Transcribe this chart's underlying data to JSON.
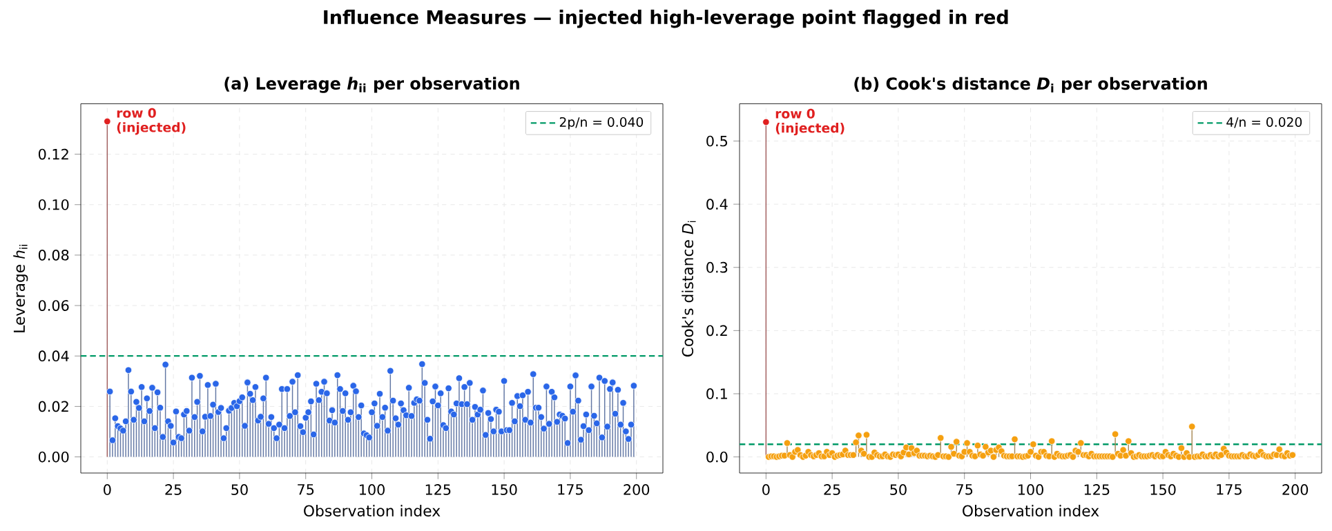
{
  "chart_data": [
    {
      "type": "lollipop",
      "title": "(a) Leverage *h*$_{ii}$ per observation",
      "xlabel": "Observation index",
      "ylabel": "Leverage *h*$_{ii}$",
      "annotations": [
        "Influence Measures — injected high-leverage point flagged in red",
        {
          "text": "row 0 (injected)",
          "x": 0,
          "y": 0.133
        }
      ],
      "xlim": [
        -10,
        210
      ],
      "xticks": [
        0,
        25,
        50,
        75,
        100,
        125,
        150,
        175,
        200
      ],
      "ylim": [
        -0.0064,
        0.14
      ],
      "yticks": [
        {
          "value": 0,
          "label": "0.00"
        },
        {
          "value": 0.02,
          "label": "0.02"
        },
        {
          "value": 0.04,
          "label": "0.04"
        },
        {
          "value": 0.06,
          "label": "0.06"
        },
        {
          "value": 0.08,
          "label": "0.08"
        },
        {
          "value": 0.1,
          "label": "0.10"
        },
        {
          "value": 0.12,
          "label": "0.12"
        }
      ],
      "grid": true,
      "legend": "top right",
      "marker": "circle",
      "ref_lines": [
        {
          "axis": "y",
          "value": 0.04,
          "label": "2p/n = 0.040",
          "color": "#009966",
          "line_style": "dashed"
        }
      ],
      "series": [
        {
          "color": "#2a66e8",
          "x": [
            1,
            2,
            3,
            4,
            5,
            6,
            7,
            8,
            9,
            10,
            11,
            12,
            13,
            14,
            15,
            16,
            17,
            18,
            19,
            20,
            21,
            22,
            23,
            24,
            25,
            26,
            27,
            28,
            29,
            30,
            31,
            32,
            33,
            34,
            35,
            36,
            37,
            38,
            39,
            40,
            41,
            42,
            43,
            44,
            45,
            46,
            47,
            48,
            49,
            50,
            51,
            52,
            53,
            54,
            55,
            56,
            57,
            58,
            59,
            60,
            61,
            62,
            63,
            64,
            65,
            66,
            67,
            68,
            69,
            70,
            71,
            72,
            73,
            74,
            75,
            76,
            77,
            78,
            79,
            80,
            81,
            82,
            83,
            84,
            85,
            86,
            87,
            88,
            89,
            90,
            91,
            92,
            93,
            94,
            95,
            96,
            97,
            98,
            99,
            100,
            101,
            102,
            103,
            104,
            105,
            106,
            107,
            108,
            109,
            110,
            111,
            112,
            113,
            114,
            115,
            116,
            117,
            118,
            119,
            120,
            121,
            122,
            123,
            124,
            125,
            126,
            127,
            128,
            129,
            130,
            131,
            132,
            133,
            134,
            135,
            136,
            137,
            138,
            139,
            140,
            141,
            142,
            143,
            144,
            145,
            146,
            147,
            148,
            149,
            150,
            151,
            152,
            153,
            154,
            155,
            156,
            157,
            158,
            159,
            160,
            161,
            162,
            163,
            164,
            165,
            166,
            167,
            168,
            169,
            170,
            171,
            172,
            173,
            174,
            175,
            176,
            177,
            178,
            179,
            180,
            181,
            182,
            183,
            184,
            185,
            186,
            187,
            188,
            189,
            190,
            191,
            192,
            193,
            194,
            195,
            196,
            197,
            198,
            199
          ],
          "values": [
            0.0259,
            0.0066,
            0.0153,
            0.0122,
            0.0113,
            0.0104,
            0.0141,
            0.0344,
            0.0259,
            0.0147,
            0.0218,
            0.0194,
            0.0277,
            0.0141,
            0.0232,
            0.0182,
            0.0274,
            0.0114,
            0.0256,
            0.0195,
            0.0079,
            0.0366,
            0.0141,
            0.0123,
            0.0057,
            0.018,
            0.0079,
            0.0074,
            0.0168,
            0.0182,
            0.0104,
            0.0314,
            0.0158,
            0.0218,
            0.0321,
            0.0101,
            0.0159,
            0.0285,
            0.0162,
            0.0207,
            0.029,
            0.0178,
            0.0194,
            0.0074,
            0.0114,
            0.0183,
            0.0194,
            0.0214,
            0.0201,
            0.0221,
            0.0236,
            0.0123,
            0.0295,
            0.025,
            0.0225,
            0.0277,
            0.0144,
            0.0159,
            0.0232,
            0.0314,
            0.0131,
            0.0158,
            0.0114,
            0.0074,
            0.0128,
            0.0269,
            0.0114,
            0.0269,
            0.0162,
            0.0298,
            0.0177,
            0.0324,
            0.0122,
            0.0098,
            0.0155,
            0.0177,
            0.022,
            0.0089,
            0.029,
            0.0225,
            0.0258,
            0.0298,
            0.0252,
            0.0144,
            0.0185,
            0.0136,
            0.0324,
            0.0269,
            0.0182,
            0.0252,
            0.0147,
            0.0177,
            0.0282,
            0.026,
            0.0158,
            0.0204,
            0.0093,
            0.0086,
            0.0077,
            0.0177,
            0.0212,
            0.0123,
            0.025,
            0.0158,
            0.0195,
            0.0104,
            0.0341,
            0.0223,
            0.0153,
            0.0128,
            0.0212,
            0.0185,
            0.0165,
            0.0274,
            0.0162,
            0.0214,
            0.0228,
            0.0223,
            0.0368,
            0.0293,
            0.0147,
            0.0072,
            0.022,
            0.0279,
            0.0204,
            0.0252,
            0.0126,
            0.0114,
            0.0272,
            0.018,
            0.0168,
            0.0212,
            0.0312,
            0.0209,
            0.0277,
            0.0209,
            0.0293,
            0.0147,
            0.0198,
            0.0168,
            0.0187,
            0.0263,
            0.0087,
            0.0174,
            0.015,
            0.0101,
            0.0187,
            0.0179,
            0.0101,
            0.0301,
            0.0106,
            0.0106,
            0.0214,
            0.0141,
            0.0241,
            0.0201,
            0.0244,
            0.0147,
            0.0258,
            0.0136,
            0.0328,
            0.0195,
            0.0195,
            0.0158,
            0.0112,
            0.0279,
            0.0131,
            0.0258,
            0.0236,
            0.0139,
            0.0168,
            0.0163,
            0.0152,
            0.0055,
            0.0279,
            0.0179,
            0.0323,
            0.0223,
            0.0068,
            0.0122,
            0.0168,
            0.0106,
            0.0279,
            0.0163,
            0.0133,
            0.0314,
            0.0077,
            0.0301,
            0.012,
            0.0269,
            0.0295,
            0.0171,
            0.0266,
            0.0128,
            0.0214,
            0.0101,
            0.0071,
            0.0128,
            0.0282
          ]
        },
        {
          "color": "#e02020",
          "x": [
            0
          ],
          "values": [
            0.133
          ]
        }
      ]
    },
    {
      "type": "lollipop",
      "title": "(b) Cook's distance *D*$_{i}$ per observation",
      "xlabel": "Observation index",
      "ylabel": "Cook's distance *D*$_{i}$",
      "annotations": [
        {
          "text": "row 0 (injected)",
          "x": 0,
          "y": 0.53
        }
      ],
      "xlim": [
        -10,
        210
      ],
      "xticks": [
        0,
        25,
        50,
        75,
        100,
        125,
        150,
        175,
        200
      ],
      "ylim": [
        -0.0255,
        0.559
      ],
      "yticks": [
        {
          "value": 0,
          "label": "0.0"
        },
        {
          "value": 0.1,
          "label": "0.1"
        },
        {
          "value": 0.2,
          "label": "0.2"
        },
        {
          "value": 0.3,
          "label": "0.3"
        },
        {
          "value": 0.4,
          "label": "0.4"
        },
        {
          "value": 0.5,
          "label": "0.5"
        }
      ],
      "grid": true,
      "legend": "top right",
      "marker": "circle",
      "ref_lines": [
        {
          "axis": "y",
          "value": 0.02,
          "label": "4/n = 0.020",
          "color": "#009966",
          "line_style": "dashed"
        }
      ],
      "series": [
        {
          "color": "#f5a010",
          "x": [
            1,
            2,
            3,
            4,
            5,
            6,
            7,
            8,
            9,
            10,
            11,
            12,
            13,
            14,
            15,
            16,
            17,
            18,
            19,
            20,
            21,
            22,
            23,
            24,
            25,
            26,
            27,
            28,
            29,
            30,
            31,
            32,
            33,
            34,
            35,
            36,
            37,
            38,
            39,
            40,
            41,
            42,
            43,
            44,
            45,
            46,
            47,
            48,
            49,
            50,
            51,
            52,
            53,
            54,
            55,
            56,
            57,
            58,
            59,
            60,
            61,
            62,
            63,
            64,
            65,
            66,
            67,
            68,
            69,
            70,
            71,
            72,
            73,
            74,
            75,
            76,
            77,
            78,
            79,
            80,
            81,
            82,
            83,
            84,
            85,
            86,
            87,
            88,
            89,
            90,
            91,
            92,
            93,
            94,
            95,
            96,
            97,
            98,
            99,
            100,
            101,
            102,
            103,
            104,
            105,
            106,
            107,
            108,
            109,
            110,
            111,
            112,
            113,
            114,
            115,
            116,
            117,
            118,
            119,
            120,
            121,
            122,
            123,
            124,
            125,
            126,
            127,
            128,
            129,
            130,
            131,
            132,
            133,
            134,
            135,
            136,
            137,
            138,
            139,
            140,
            141,
            142,
            143,
            144,
            145,
            146,
            147,
            148,
            149,
            150,
            151,
            152,
            153,
            154,
            155,
            156,
            157,
            158,
            159,
            160,
            161,
            162,
            163,
            164,
            165,
            166,
            167,
            168,
            169,
            170,
            171,
            172,
            173,
            174,
            175,
            176,
            177,
            178,
            179,
            180,
            181,
            182,
            183,
            184,
            185,
            186,
            187,
            188,
            189,
            190,
            191,
            192,
            193,
            194,
            195,
            196,
            197,
            198,
            199
          ],
          "values": [
            0.0,
            0.001,
            0.001,
            0.0,
            0.001,
            0.002,
            0.002,
            0.022,
            0.003,
            0.0,
            0.008,
            0.011,
            0.003,
            0.0,
            0.002,
            0.008,
            0.003,
            0.001,
            0.003,
            0.006,
            0.001,
            0.001,
            0.008,
            0.003,
            0.006,
            0.0,
            0.002,
            0.003,
            0.004,
            0.01,
            0.003,
            0.003,
            0.003,
            0.023,
            0.034,
            0.01,
            0.005,
            0.035,
            0.0,
            0.0,
            0.007,
            0.003,
            0.001,
            0.001,
            0.004,
            0.001,
            0.0,
            0.004,
            0.003,
            0.004,
            0.001,
            0.007,
            0.015,
            0.004,
            0.014,
            0.006,
            0.01,
            0.002,
            0.002,
            0.002,
            0.001,
            0.002,
            0.001,
            0.0,
            0.003,
            0.03,
            0.001,
            0.001,
            0.0,
            0.016,
            0.005,
            0.024,
            0.002,
            0.001,
            0.008,
            0.022,
            0.008,
            0.002,
            0.001,
            0.018,
            0.004,
            0.002,
            0.016,
            0.007,
            0.01,
            0.0,
            0.011,
            0.015,
            0.009,
            0.002,
            0.001,
            0.001,
            0.001,
            0.028,
            0.001,
            0.001,
            0.0,
            0.001,
            0.002,
            0.008,
            0.02,
            0.002,
            0.0,
            0.008,
            0.008,
            0.002,
            0.001,
            0.025,
            0.0,
            0.005,
            0.002,
            0.001,
            0.001,
            0.002,
            0.003,
            0.0,
            0.01,
            0.008,
            0.022,
            0.003,
            0.003,
            0.001,
            0.005,
            0.001,
            0.001,
            0.001,
            0.001,
            0.001,
            0.001,
            0.001,
            0.0,
            0.036,
            0.005,
            0.002,
            0.011,
            0.002,
            0.025,
            0.006,
            0.0,
            0.001,
            0.003,
            0.001,
            0.001,
            0.001,
            0.002,
            0.003,
            0.001,
            0.003,
            0.001,
            0.001,
            0.008,
            0.003,
            0.001,
            0.005,
            0.002,
            0.0,
            0.014,
            0.0,
            0.006,
            0.0,
            0.048,
            0.0,
            0.001,
            0.001,
            0.004,
            0.001,
            0.001,
            0.003,
            0.001,
            0.004,
            0.001,
            0.003,
            0.013,
            0.007,
            0.002,
            0.001,
            0.001,
            0.001,
            0.001,
            0.003,
            0.001,
            0.001,
            0.004,
            0.002,
            0.001,
            0.003,
            0.008,
            0.003,
            0.001,
            0.001,
            0.001,
            0.004,
            0.003,
            0.012,
            0.002,
            0.001,
            0.006,
            0.002,
            0.003
          ]
        },
        {
          "color": "#e02020",
          "x": [
            0
          ],
          "values": [
            0.53
          ]
        }
      ]
    }
  ]
}
